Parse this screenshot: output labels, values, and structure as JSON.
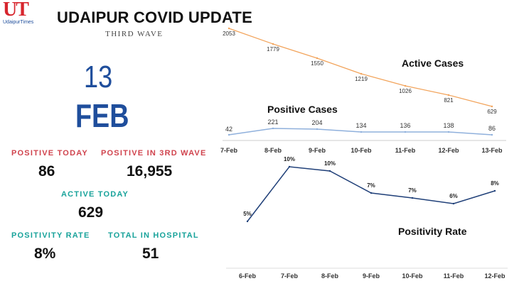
{
  "header": {
    "logo_text": "UT",
    "logo_subtext": "UdaipurTimes",
    "title": "UDAIPUR COVID UPDATE",
    "subtitle": "THIRD WAVE"
  },
  "date": {
    "day": "13",
    "month": "FEB"
  },
  "stats": {
    "positive_today": {
      "label": "POSITIVE TODAY",
      "value": "86"
    },
    "positive_3rd_wave": {
      "label": "POSITIVE IN 3RD WAVE",
      "value": "16,955"
    },
    "active_today": {
      "label": "ACTIVE TODAY",
      "value": "629"
    },
    "positivity_rate": {
      "label": "POSITIVITY RATE",
      "value": "8%"
    },
    "total_in_hospital": {
      "label": "TOTAL IN HOSPITAL",
      "value": "51"
    }
  },
  "colors": {
    "brand_red": "#d7262e",
    "brand_blue": "#1f4e9c",
    "label_red": "#d0434d",
    "label_teal": "#19a39b",
    "active_line": "#f2a35a",
    "positive_line": "#8fb0dc",
    "positivity_line": "#1f3f78"
  },
  "chart_data": [
    {
      "type": "line",
      "title": "Active Cases",
      "x": [
        "7-Feb",
        "8-Feb",
        "9-Feb",
        "10-Feb",
        "11-Feb",
        "12-Feb",
        "13-Feb"
      ],
      "series": [
        {
          "values": [
            2053,
            1779,
            1550,
            1219,
            1026,
            821,
            629
          ]
        }
      ],
      "data_labels": [
        "2053",
        "1779",
        "1550",
        "1219",
        "1026",
        "821",
        "629"
      ],
      "ylim": [
        600,
        2100
      ],
      "grid": false
    },
    {
      "type": "line",
      "title": "Positive Cases",
      "x": [
        "7-Feb",
        "8-Feb",
        "9-Feb",
        "10-Feb",
        "11-Feb",
        "12-Feb",
        "13-Feb"
      ],
      "series": [
        {
          "values": [
            42,
            221,
            204,
            134,
            136,
            138,
            86
          ]
        }
      ],
      "data_labels": [
        "42",
        "221",
        "204",
        "134",
        "136",
        "138",
        "86"
      ],
      "ylim": [
        0,
        250
      ],
      "grid": false
    },
    {
      "type": "line",
      "title": "Positivity Rate",
      "x": [
        "6-Feb",
        "7-Feb",
        "8-Feb",
        "9-Feb",
        "10-Feb",
        "11-Feb",
        "12-Feb"
      ],
      "series": [
        {
          "values": [
            5,
            10,
            10,
            7,
            7,
            6,
            8
          ]
        }
      ],
      "data_labels": [
        "5%",
        "10%",
        "10%",
        "7%",
        "7%",
        "6%",
        "8%"
      ],
      "ylim": [
        4,
        11
      ],
      "grid": false
    }
  ]
}
